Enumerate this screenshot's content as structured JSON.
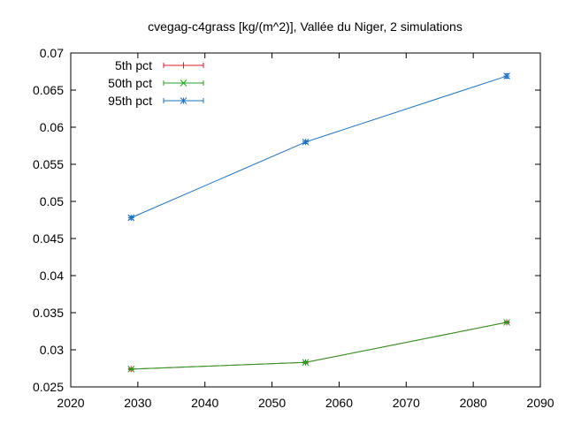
{
  "chart_data": {
    "type": "line",
    "title": "cvegag-c4grass [kg/(m^2)], Vallée du Niger, 2 simulations",
    "xlabel": "",
    "ylabel": "",
    "xlim": [
      2020,
      2090
    ],
    "ylim": [
      0.025,
      0.07
    ],
    "xticks": [
      2020,
      2030,
      2040,
      2050,
      2060,
      2070,
      2080,
      2090
    ],
    "yticks": [
      0.025,
      0.03,
      0.035,
      0.04,
      0.045,
      0.05,
      0.055,
      0.06,
      0.065,
      0.07
    ],
    "xtick_labels": [
      "2020",
      "2030",
      "2040",
      "2050",
      "2060",
      "2070",
      "2080",
      "2090"
    ],
    "ytick_labels": [
      "0.025",
      "0.03",
      "0.035",
      "0.04",
      "0.045",
      "0.05",
      "0.055",
      "0.06",
      "0.065",
      "0.07"
    ],
    "grid": false,
    "legend_position": "top-left",
    "x": [
      2029,
      2055,
      2085
    ],
    "series": [
      {
        "name": "5th pct",
        "color": "#e41a1c",
        "marker": "plus",
        "values": [
          0.0274,
          0.0283,
          0.0337
        ],
        "error": [
          0.0001,
          0.0001,
          0.0001
        ]
      },
      {
        "name": "50th pct",
        "color": "#22a022",
        "marker": "cross",
        "values": [
          0.0274,
          0.0283,
          0.0337
        ],
        "error": [
          0.0001,
          0.0001,
          0.0001
        ]
      },
      {
        "name": "95th pct",
        "color": "#1a72c8",
        "marker": "star",
        "values": [
          0.0478,
          0.058,
          0.0669
        ],
        "error": [
          0.0002,
          0.0002,
          0.0003
        ]
      }
    ]
  }
}
